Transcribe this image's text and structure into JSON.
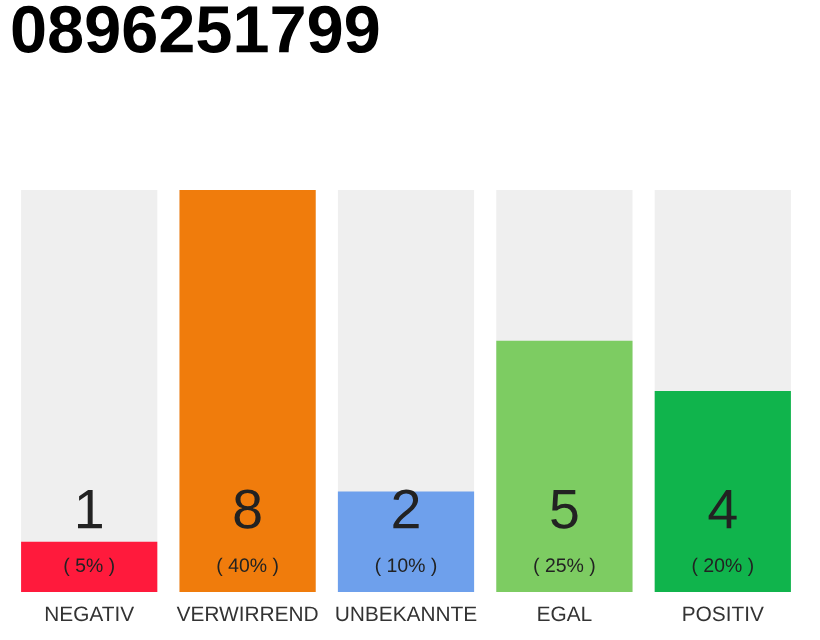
{
  "chart_data": {
    "type": "bar",
    "title": "0896251799",
    "categories": [
      "NEGATIV",
      "VERWIRREND",
      "UNBEKANNTE",
      "EGAL",
      "POSITIV"
    ],
    "values": [
      1,
      8,
      2,
      5,
      4
    ],
    "colors": [
      "#ff1a3c",
      "#f07c0c",
      "#6ea0ec",
      "#7dcc62",
      "#10b44c"
    ],
    "value_labels": [
      "1\n( 5% )",
      "8\n( 40% )",
      "2\n( 10% )",
      "5\n( 25% )",
      "4\n( 20% )"
    ],
    "grid": false,
    "legend": false
  }
}
